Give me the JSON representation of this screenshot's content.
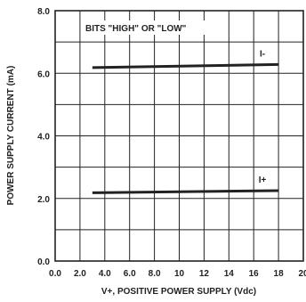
{
  "chart_data": {
    "type": "line",
    "title": "",
    "annotation": "BITS \"HIGH\" OR \"LOW\"",
    "xlabel": "V+, POSITIVE POWER SUPPLY (Vdc)",
    "ylabel": "POWER SUPPLY CURRENT (mA)",
    "xlim": [
      0,
      20
    ],
    "ylim": [
      0,
      8
    ],
    "xticks": [
      0,
      2,
      4,
      6,
      8,
      10,
      12,
      14,
      16,
      18,
      20
    ],
    "xtick_labels": [
      "0.0",
      "2.0",
      "4.0",
      "6.0",
      "8.0",
      "10",
      "12",
      "14",
      "16",
      "18",
      "20"
    ],
    "yticks": [
      0,
      2,
      4,
      6,
      8
    ],
    "ytick_labels": [
      "0.0",
      "2.0",
      "4.0",
      "6.0",
      "8.0"
    ],
    "grid": true,
    "series": [
      {
        "name": "I-",
        "x": [
          3,
          18
        ],
        "y": [
          6.18,
          6.28
        ]
      },
      {
        "name": "I+",
        "x": [
          3,
          18
        ],
        "y": [
          2.18,
          2.25
        ]
      }
    ]
  }
}
